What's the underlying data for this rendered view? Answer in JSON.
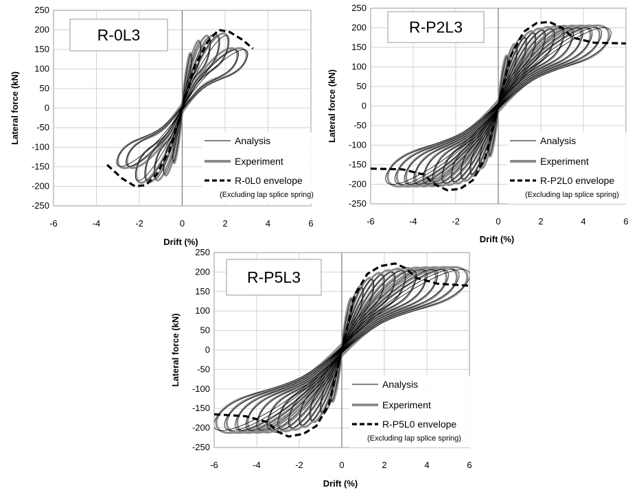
{
  "chart_data": [
    {
      "type": "line",
      "title": "R-0L3",
      "xlabel": "Drift (%)",
      "ylabel": "Lateral force (kN)",
      "xlim": [
        -6,
        6
      ],
      "ylim": [
        -250,
        250
      ],
      "xticks": [
        "-6",
        "-4",
        "-2",
        "0",
        "2",
        "4",
        "6"
      ],
      "yticks": [
        "250",
        "200",
        "150",
        "100",
        "50",
        "0",
        "-50",
        "-100",
        "-150",
        "-200",
        "-250"
      ],
      "grid": true,
      "legend_position": "bottom-right",
      "legend_note": "(Excluding lap splice spring)",
      "peak_drift": 3.0,
      "series": [
        {
          "name": "Analysis",
          "style": "thin-black",
          "color": "#000000"
        },
        {
          "name": "Experiment",
          "style": "thick-gray",
          "color": "#8c8c8c"
        },
        {
          "name": "R-0L0 envelope",
          "style": "dashed-black",
          "color": "#000000",
          "x": [
            -3.5,
            -2.8,
            -2.2,
            -1.7,
            -1.2,
            -0.6,
            0,
            0.6,
            1.2,
            1.7,
            2.2,
            2.8,
            3.3
          ],
          "y": [
            -145,
            -180,
            -200,
            -197,
            -170,
            -110,
            0,
            110,
            170,
            200,
            195,
            175,
            152
          ]
        }
      ]
    },
    {
      "type": "line",
      "title": "R-P2L3",
      "xlabel": "Drift (%)",
      "ylabel": "Lateral force (kN)",
      "xlim": [
        -6,
        6
      ],
      "ylim": [
        -250,
        250
      ],
      "xticks": [
        "-6",
        "-4",
        "-2",
        "0",
        "2",
        "4",
        "6"
      ],
      "yticks": [
        "250",
        "200",
        "150",
        "100",
        "50",
        "0",
        "-50",
        "-100",
        "-150",
        "-200",
        "-250"
      ],
      "grid": true,
      "legend_position": "bottom-right",
      "legend_note": "(Excluding lap splice spring)",
      "peak_drift": 5.2,
      "series": [
        {
          "name": "Analysis",
          "style": "thin-black",
          "color": "#000000"
        },
        {
          "name": "Experiment",
          "style": "thick-gray",
          "color": "#8c8c8c"
        },
        {
          "name": "R-P2L0 envelope",
          "style": "dashed-black",
          "color": "#000000",
          "x": [
            -6,
            -4.5,
            -3.5,
            -3,
            -2.4,
            -1.8,
            -1.2,
            -0.6,
            0,
            0.6,
            1.2,
            1.8,
            2.4,
            3,
            3.5,
            4.5,
            6
          ],
          "y": [
            -160,
            -162,
            -175,
            -200,
            -215,
            -212,
            -190,
            -130,
            0,
            130,
            190,
            212,
            215,
            200,
            175,
            162,
            160
          ]
        }
      ]
    },
    {
      "type": "line",
      "title": "R-P5L3",
      "xlabel": "Drift (%)",
      "ylabel": "Lateral force (kN)",
      "xlim": [
        -6,
        6
      ],
      "ylim": [
        -250,
        250
      ],
      "xticks": [
        "-6",
        "-4",
        "-2",
        "0",
        "2",
        "4",
        "6"
      ],
      "yticks": [
        "250",
        "200",
        "150",
        "100",
        "50",
        "0",
        "-50",
        "-100",
        "-150",
        "-200",
        "-250"
      ],
      "grid": true,
      "legend_position": "bottom-right",
      "legend_note": "(Excluding lap splice spring)",
      "peak_drift": 5.9,
      "series": [
        {
          "name": "Analysis",
          "style": "thin-black",
          "color": "#000000"
        },
        {
          "name": "Experiment",
          "style": "thick-gray",
          "color": "#8c8c8c"
        },
        {
          "name": "R-P5L0 envelope",
          "style": "dashed-black",
          "color": "#000000",
          "x": [
            -6,
            -4.5,
            -3.5,
            -3,
            -2.5,
            -1.8,
            -1.2,
            -0.6,
            0,
            0.6,
            1.2,
            1.8,
            2.5,
            3,
            3.5,
            4.5,
            6
          ],
          "y": [
            -165,
            -170,
            -185,
            -210,
            -222,
            -215,
            -195,
            -140,
            0,
            140,
            195,
            215,
            222,
            210,
            185,
            170,
            165
          ]
        }
      ]
    }
  ]
}
